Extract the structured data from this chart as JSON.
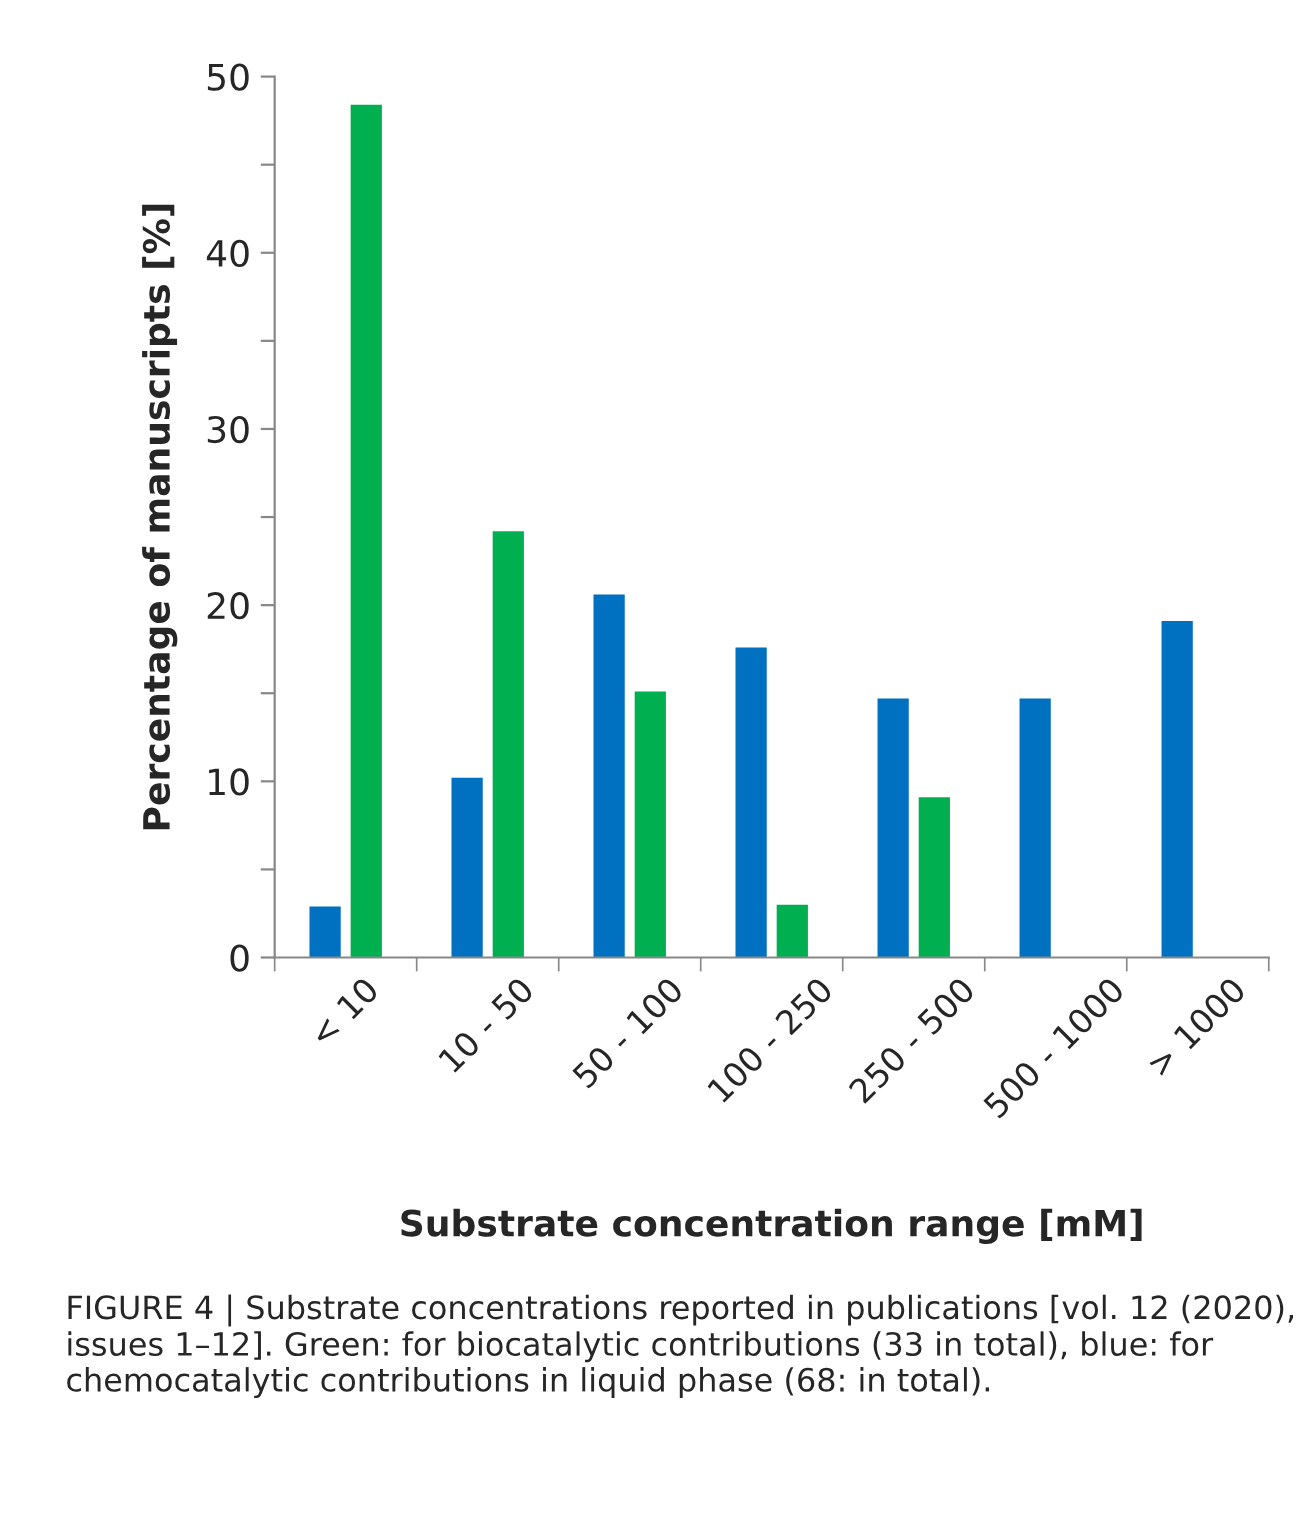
{
  "chart_data": {
    "type": "bar",
    "xlabel": "Substrate concentration range [mM]",
    "ylabel": "Percentage of manuscripts [%]",
    "categories": [
      "< 10",
      "10 - 50",
      "50 - 100",
      "100 - 250",
      "250 - 500",
      "500 - 1000",
      "> 1000"
    ],
    "series": [
      {
        "color": "#0070c0",
        "values": [
          2.9,
          10.2,
          20.6,
          17.6,
          14.7,
          14.7,
          19.1
        ]
      },
      {
        "color": "#00b050",
        "values": [
          48.4,
          24.2,
          15.1,
          3.0,
          9.1,
          null,
          null
        ]
      }
    ],
    "ylim": [
      0,
      50
    ],
    "yticks": [
      0,
      {
        "value": 5,
        "label": null
      },
      10,
      {
        "value": 15,
        "label": null
      },
      20,
      {
        "value": 25,
        "label": null
      },
      30,
      {
        "value": 35,
        "label": null
      },
      40,
      {
        "value": 45,
        "label": null
      },
      50
    ],
    "grid": false,
    "legend": false,
    "annotations": [
      "FIGURE 4 | Substrate concentrations reported in publications [vol. 12 (2020), issues 1–12]. Green: for biocatalytic contributions (33 in total), blue: for chemocatalytic contributions in liquid phase (68: in total)."
    ]
  }
}
